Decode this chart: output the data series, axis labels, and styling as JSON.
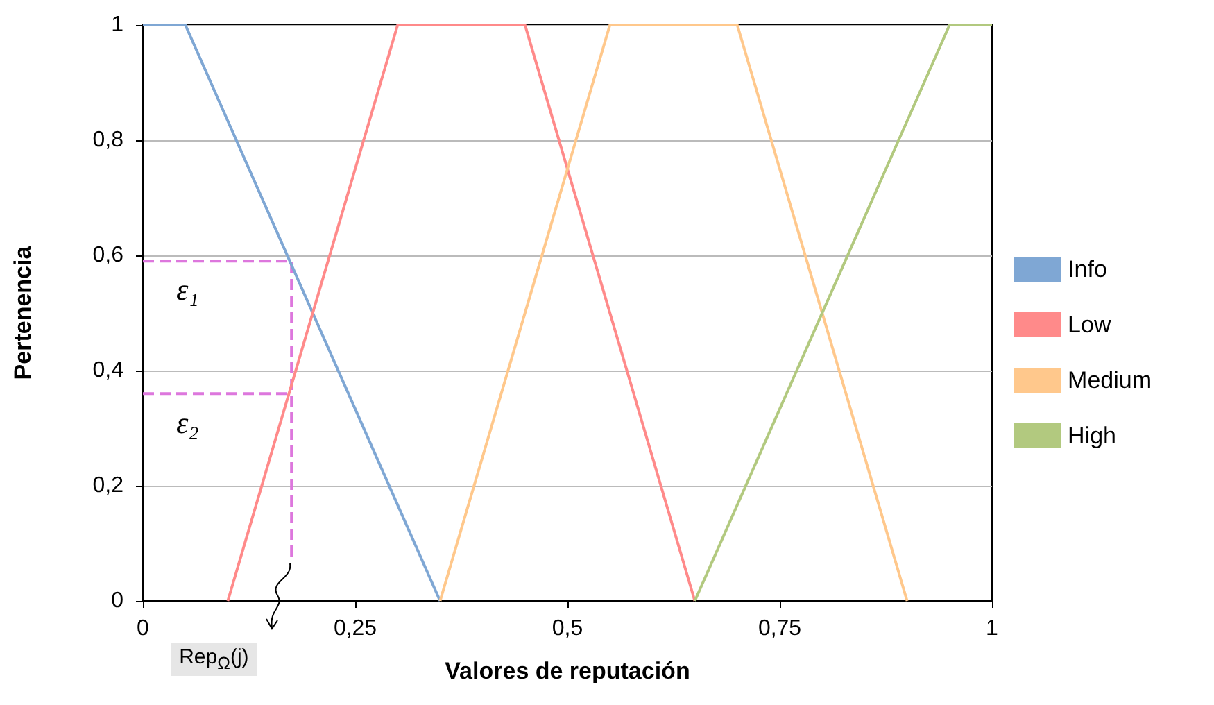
{
  "chart_data": {
    "type": "line",
    "xlabel": "Valores de reputación",
    "ylabel": "Pertenencia",
    "xlim": [
      0,
      1
    ],
    "ylim": [
      0,
      1
    ],
    "xticks": [
      0,
      {
        "value": 0.25,
        "label": "0,25"
      },
      {
        "value": 0.5,
        "label": "0,5"
      },
      {
        "value": 0.75,
        "label": "0,75"
      },
      1
    ],
    "yticks": [
      0,
      {
        "value": 0.2,
        "label": "0,2"
      },
      {
        "value": 0.4,
        "label": "0,4"
      },
      {
        "value": 0.6,
        "label": "0,6"
      },
      {
        "value": 0.8,
        "label": "0,8"
      },
      1
    ],
    "grid": "y",
    "legend": "right",
    "marker": "none",
    "series": [
      {
        "name": "Info",
        "color": "#7fa7d4",
        "x": [
          0,
          0.05,
          0.35
        ],
        "values": [
          1,
          1,
          0
        ]
      },
      {
        "name": "Low",
        "color": "#ff8a8a",
        "x": [
          0.1,
          0.3,
          0.45,
          0.65
        ],
        "values": [
          0,
          1,
          1,
          0
        ]
      },
      {
        "name": "Medium",
        "color": "#ffc88c",
        "x": [
          0.35,
          0.55,
          0.7,
          0.9
        ],
        "values": [
          0,
          1,
          1,
          0
        ]
      },
      {
        "name": "High",
        "color": "#b2c97f",
        "x": [
          0.65,
          0.95,
          1
        ],
        "values": [
          0,
          1,
          1
        ]
      },
      {
        "color": "#dd77dd",
        "line_style": "dashed",
        "x": [
          0,
          0.175,
          0.175
        ],
        "values": [
          0.59,
          0.59,
          0.07
        ]
      },
      {
        "color": "#dd77dd",
        "line_style": "dashed",
        "x": [
          0,
          0.175
        ],
        "values": [
          0.36,
          0.36
        ]
      }
    ],
    "annotations": [
      "ε₁",
      "ε₂",
      "Rep$_{Ω}$(j)"
    ]
  }
}
